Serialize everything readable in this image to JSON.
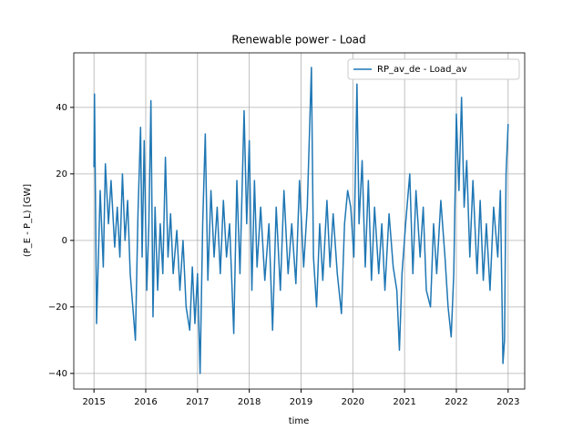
{
  "chart_data": {
    "type": "line",
    "title": "Renewable power - Load",
    "xlabel": "time",
    "ylabel": "(P_E - P_L) [GW]",
    "x": [
      2015.0,
      2015.01,
      2015.03,
      2015.05,
      2015.08,
      2015.12,
      2015.18,
      2015.22,
      2015.28,
      2015.33,
      2015.4,
      2015.45,
      2015.5,
      2015.55,
      2015.6,
      2015.65,
      2015.7,
      2015.75,
      2015.8,
      2015.85,
      2015.9,
      2015.93,
      2015.97,
      2016.02,
      2016.06,
      2016.1,
      2016.14,
      2016.18,
      2016.23,
      2016.28,
      2016.33,
      2016.38,
      2016.43,
      2016.48,
      2016.53,
      2016.6,
      2016.66,
      2016.72,
      2016.78,
      2016.85,
      2016.9,
      2016.95,
      2017.0,
      2017.05,
      2017.1,
      2017.15,
      2017.2,
      2017.26,
      2017.32,
      2017.38,
      2017.44,
      2017.5,
      2017.56,
      2017.62,
      2017.7,
      2017.76,
      2017.82,
      2017.9,
      2017.95,
      2018.0,
      2018.05,
      2018.1,
      2018.15,
      2018.22,
      2018.3,
      2018.38,
      2018.45,
      2018.52,
      2018.6,
      2018.67,
      2018.75,
      2018.82,
      2018.9,
      2018.97,
      2019.05,
      2019.12,
      2019.2,
      2019.24,
      2019.3,
      2019.36,
      2019.42,
      2019.5,
      2019.56,
      2019.62,
      2019.7,
      2019.78,
      2019.84,
      2019.9,
      2019.96,
      2020.02,
      2020.08,
      2020.12,
      2020.18,
      2020.24,
      2020.3,
      2020.36,
      2020.42,
      2020.5,
      2020.56,
      2020.62,
      2020.7,
      2020.78,
      2020.85,
      2020.9,
      2020.95,
      2021.02,
      2021.1,
      2021.16,
      2021.22,
      2021.3,
      2021.36,
      2021.42,
      2021.5,
      2021.56,
      2021.62,
      2021.7,
      2021.78,
      2021.84,
      2021.9,
      2021.95,
      2022.0,
      2022.05,
      2022.1,
      2022.15,
      2022.2,
      2022.26,
      2022.32,
      2022.4,
      2022.46,
      2022.52,
      2022.58,
      2022.65,
      2022.72,
      2022.8,
      2022.85,
      2022.9,
      2022.93,
      2022.96,
      2023.0
    ],
    "series": [
      {
        "name": "RP_av_de - Load_av",
        "color": "#1f77b4",
        "values": [
          22,
          44,
          10,
          -25,
          -8,
          15,
          -8,
          23,
          5,
          18,
          -2,
          10,
          -5,
          20,
          0,
          12,
          -10,
          -20,
          -30,
          8,
          34,
          -5,
          30,
          -15,
          5,
          42,
          -23,
          10,
          -15,
          5,
          -10,
          25,
          -5,
          8,
          -10,
          3,
          -15,
          0,
          -20,
          -27,
          -8,
          -25,
          -10,
          -40,
          5,
          32,
          -12,
          15,
          -5,
          10,
          -10,
          12,
          -5,
          5,
          -28,
          18,
          -10,
          39,
          5,
          30,
          -15,
          18,
          -8,
          10,
          -12,
          5,
          -27,
          10,
          -15,
          15,
          -10,
          5,
          -13,
          18,
          -8,
          10,
          52,
          -5,
          -20,
          5,
          -12,
          12,
          -8,
          8,
          -10,
          -22,
          5,
          15,
          10,
          -5,
          47,
          5,
          24,
          -8,
          18,
          -12,
          10,
          -10,
          5,
          -15,
          8,
          -8,
          -15,
          -33,
          -10,
          5,
          20,
          -10,
          15,
          -5,
          10,
          -15,
          -20,
          5,
          -10,
          12,
          -5,
          -20,
          -29,
          -10,
          38,
          15,
          43,
          10,
          24,
          -5,
          18,
          -10,
          12,
          -12,
          5,
          -15,
          10,
          -5,
          15,
          -37,
          -30,
          20,
          35
        ]
      }
    ],
    "xlim": [
      2014.61,
      2023.32
    ],
    "xticks": [
      2015,
      2016,
      2017,
      2018,
      2019,
      2020,
      2021,
      2022,
      2023
    ],
    "ylim": [
      -44.7,
      56.4
    ],
    "yticks": [
      {
        "value": -40,
        "label": "−40"
      },
      {
        "value": -20,
        "label": "−20"
      },
      0,
      20,
      40
    ],
    "grid": true,
    "legend": "upper right"
  }
}
